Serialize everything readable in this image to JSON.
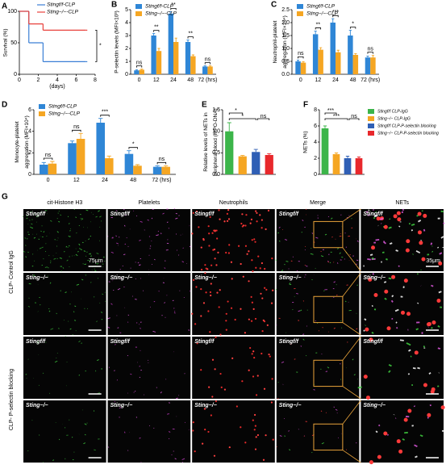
{
  "chart_data": [
    {
      "type": "line",
      "label": "A",
      "ylabel": "Survival (%)",
      "xlabel": "(days)",
      "xlim": [
        0,
        8
      ],
      "xticks": [
        0,
        2,
        4,
        6,
        8
      ],
      "ylim": [
        0,
        100
      ],
      "yticks": [
        0,
        50,
        100
      ],
      "annotation": "*",
      "series": [
        {
          "name": "Stingf/f-CLP",
          "color": "#3a7fd5",
          "x": [
            0,
            1,
            2.5,
            7
          ],
          "values": [
            100,
            50,
            20,
            20
          ]
        },
        {
          "name": "Sting−/−-CLP",
          "color": "#e8413c",
          "x": [
            0,
            1,
            2.5,
            7
          ],
          "values": [
            100,
            80,
            70,
            70
          ]
        }
      ]
    },
    {
      "type": "bar",
      "label": "B",
      "ylabel": "P-selectin levels (MFI×10³)",
      "categories": [
        "0",
        "12",
        "24",
        "48",
        "72 (hrs)"
      ],
      "ylim": [
        0,
        5
      ],
      "yticks": [
        0,
        1,
        2,
        3,
        4,
        5
      ],
      "significance": [
        "ns",
        "**",
        "**",
        "**",
        "ns"
      ],
      "series": [
        {
          "name": "Stingf/f-CLP",
          "color": "#2f86d6",
          "values": [
            0.3,
            3.0,
            4.7,
            2.5,
            0.6
          ],
          "errors": [
            0.05,
            0.15,
            0.15,
            0.15,
            0.05
          ]
        },
        {
          "name": "Sting−/−-CLP",
          "color": "#f5a623",
          "values": [
            0.35,
            1.8,
            2.5,
            1.4,
            0.6
          ],
          "errors": [
            0.05,
            0.2,
            0.3,
            0.1,
            0.05
          ]
        }
      ]
    },
    {
      "type": "bar",
      "label": "C",
      "ylabel": "Neutrophil-platelet aggregation (MFI×10⁴)",
      "categories": [
        "0",
        "12",
        "24",
        "48",
        "72 (hrs)"
      ],
      "ylim": [
        0,
        2.5
      ],
      "yticks": [
        {
          "value": 0,
          "label": "0.0"
        },
        0.5,
        {
          "value": 1,
          "label": "1.0"
        },
        1.5,
        {
          "value": 2,
          "label": "2.0"
        },
        2.5
      ],
      "significance": [
        "ns",
        "**",
        "***",
        "*",
        "ns"
      ],
      "series": [
        {
          "name": "Stingf/f-CLP",
          "color": "#2f86d6",
          "values": [
            0.5,
            1.55,
            2.0,
            1.5,
            0.65
          ],
          "errors": [
            0.05,
            0.12,
            0.15,
            0.2,
            0.05
          ]
        },
        {
          "name": "Sting−/−-CLP",
          "color": "#f5a623",
          "values": [
            0.45,
            0.95,
            0.85,
            0.75,
            0.65
          ],
          "errors": [
            0.04,
            0.08,
            0.08,
            0.05,
            0.08
          ]
        }
      ]
    },
    {
      "type": "bar",
      "label": "D",
      "ylabel": "Monocyte-platelet aggregation (MFI×10⁴)",
      "categories": [
        "0",
        "12",
        "24",
        "48",
        "72 (hrs)"
      ],
      "ylim": [
        0,
        6
      ],
      "yticks": [
        0,
        2,
        4,
        6
      ],
      "significance": [
        "ns",
        "ns",
        "***",
        "*",
        "ns"
      ],
      "series": [
        {
          "name": "Stingf/f-CLP",
          "color": "#2f86d6",
          "values": [
            0.9,
            2.9,
            4.8,
            1.9,
            0.7
          ],
          "errors": [
            0.2,
            0.2,
            0.4,
            0.3,
            0.1
          ]
        },
        {
          "name": "Sting−/−-CLP",
          "color": "#f5a623",
          "values": [
            1.0,
            3.3,
            1.5,
            0.8,
            0.7
          ],
          "errors": [
            0.2,
            0.5,
            0.2,
            0.1,
            0.1
          ]
        }
      ]
    },
    {
      "type": "bar",
      "label": "E",
      "ylabel": "Relative levels of NETs in peripheral blood (MPO-DNA)",
      "ylim": [
        0,
        1.5
      ],
      "yticks": [
        {
          "value": 0,
          "label": "0.0"
        },
        0.5,
        {
          "value": 1,
          "label": "1.0"
        },
        1.5
      ],
      "significance": [
        "*",
        "*",
        "ns"
      ],
      "series": [
        {
          "color": "#3cb54a",
          "values": [
            1.0
          ],
          "errors": [
            0.2
          ]
        },
        {
          "color": "#f5a623",
          "values": [
            0.42
          ],
          "errors": [
            0.02
          ]
        },
        {
          "color": "#2f5fb5",
          "values": [
            0.52
          ],
          "errors": [
            0.06
          ]
        },
        {
          "color": "#e8282c",
          "values": [
            0.45
          ],
          "errors": [
            0.03
          ]
        }
      ]
    },
    {
      "type": "bar",
      "label": "F",
      "ylabel": "NETs (%)",
      "ylim": [
        0,
        8
      ],
      "yticks": [
        0,
        2,
        4,
        6,
        8
      ],
      "significance": [
        "***",
        "***",
        "ns"
      ],
      "series": [
        {
          "name": "Stingf/f CLP-IgG",
          "color": "#3cb54a",
          "values": [
            5.7
          ],
          "errors": [
            0.3
          ]
        },
        {
          "name": "Sting−/− CLP-IgG",
          "color": "#f5a623",
          "values": [
            2.5
          ],
          "errors": [
            0.15
          ]
        },
        {
          "name": "Stingf/f CLP-P-selectin blocking",
          "color": "#2f5fb5",
          "values": [
            2.0
          ],
          "errors": [
            0.25
          ]
        },
        {
          "name": "Sting−/− CLP-P-selectin blocking",
          "color": "#e8282c",
          "values": [
            2.0
          ],
          "errors": [
            0.15
          ]
        }
      ]
    }
  ],
  "image_panel": {
    "label": "G",
    "columns": [
      "cit-Histone H3",
      "Platelets",
      "Neutrophils",
      "Merge",
      "NETs"
    ],
    "groups": [
      "CLP- Control IgG",
      "CLP- P-selectin blocking"
    ],
    "rows": [
      "Stingf/f",
      "Sting−/−",
      "Stingf/f",
      "Sting−/−"
    ],
    "scale_bars": [
      "75μm",
      "35μm"
    ]
  }
}
